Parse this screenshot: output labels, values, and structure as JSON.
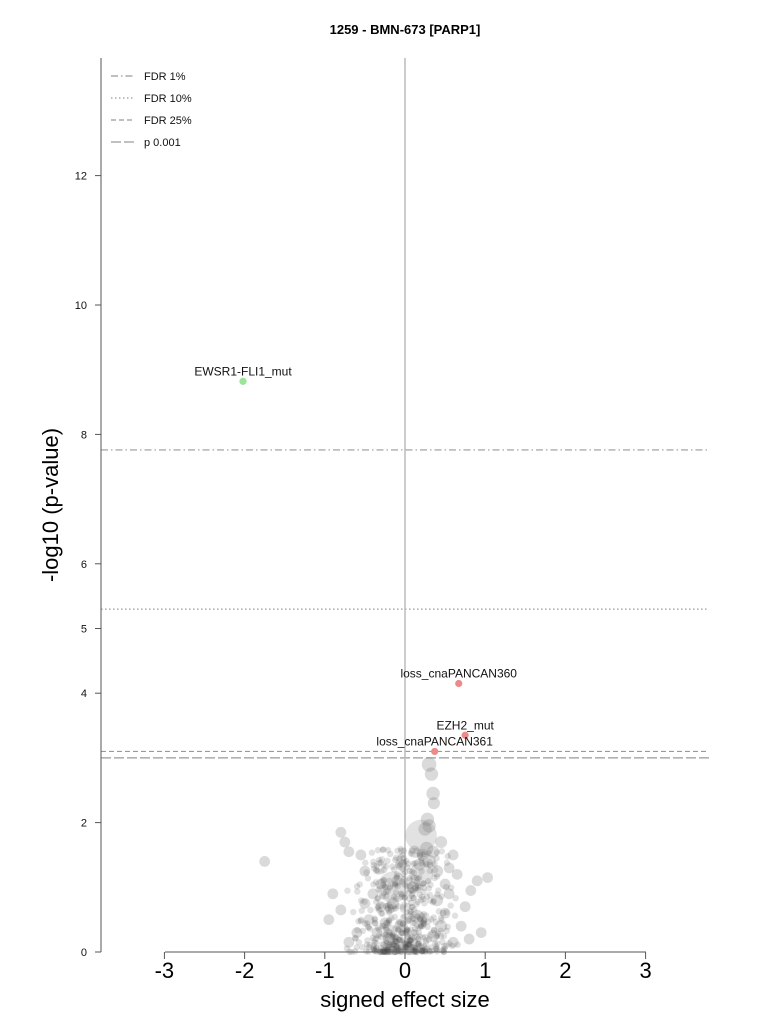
{
  "chart_data": {
    "type": "scatter",
    "title": "1259 - BMN-673 [PARP1]",
    "xlabel": "signed effect size",
    "ylabel": "-log10 (p-value)",
    "xlim": [
      -3.8,
      3.8
    ],
    "xaxis_range": [
      -3,
      3
    ],
    "x_ticks": [
      "-3",
      "-2",
      "-1",
      "0",
      "1",
      "2",
      "3"
    ],
    "y_ticks": [
      "0",
      "2",
      "4",
      "5",
      "6",
      "8",
      "10",
      "12"
    ],
    "ylim": [
      0,
      13.8
    ],
    "grid": false,
    "legend": {
      "position": "top-left",
      "entries": [
        {
          "label": "FDR 1%",
          "style": "dashdot"
        },
        {
          "label": "FDR 10%",
          "style": "dotted"
        },
        {
          "label": "FDR 25%",
          "style": "dashed"
        },
        {
          "label": "p 0.001",
          "style": "longdash"
        }
      ]
    },
    "thresholds": [
      {
        "name": "FDR 1%",
        "y": 7.76
      },
      {
        "name": "FDR 10%",
        "y": 5.3
      },
      {
        "name": "FDR 25%",
        "y": 3.1
      },
      {
        "name": "p 0.001",
        "y": 3.0
      }
    ],
    "highlighted_points": [
      {
        "label": "EWSR1-FLI1_mut",
        "x": -2.02,
        "y": 8.82,
        "color": "#99e699"
      },
      {
        "label": "loss_cnaPANCAN360",
        "x": 0.67,
        "y": 4.15,
        "color": "#ee8a8a"
      },
      {
        "label": "EZH2_mut",
        "x": 0.75,
        "y": 3.35,
        "color": "#ee8a8a"
      },
      {
        "label": "loss_cnaPANCAN361",
        "x": 0.37,
        "y": 3.1,
        "color": "#ee8a8a"
      }
    ],
    "background_points": [
      [
        -0.15,
        1.0,
        1.0
      ],
      [
        0.2,
        1.8,
        1.0
      ],
      [
        0.2,
        1.2,
        0.7
      ],
      [
        0.3,
        2.9,
        0.35
      ],
      [
        0.33,
        2.75,
        0.3
      ],
      [
        0.35,
        2.45,
        0.3
      ],
      [
        0.36,
        2.3,
        0.25
      ],
      [
        -1.75,
        1.4,
        0.2
      ],
      [
        -0.8,
        1.85,
        0.2
      ],
      [
        -0.75,
        1.7,
        0.2
      ],
      [
        -0.7,
        1.55,
        0.2
      ],
      [
        -0.5,
        1.25,
        0.2
      ],
      [
        -0.55,
        1.5,
        0.2
      ],
      [
        -0.9,
        0.9,
        0.2
      ],
      [
        -0.95,
        0.5,
        0.2
      ],
      [
        -0.6,
        0.3,
        0.2
      ],
      [
        0.9,
        1.1,
        0.2
      ],
      [
        1.03,
        1.15,
        0.2
      ],
      [
        0.82,
        0.95,
        0.2
      ],
      [
        0.75,
        0.7,
        0.2
      ],
      [
        0.6,
        1.5,
        0.2
      ],
      [
        0.55,
        1.3,
        0.2
      ],
      [
        0.55,
        0.9,
        0.2
      ],
      [
        0.5,
        0.6,
        0.2
      ],
      [
        0.7,
        0.4,
        0.2
      ],
      [
        0.8,
        0.2,
        0.2
      ],
      [
        0.65,
        1.2,
        0.2
      ],
      [
        -0.3,
        0.7,
        0.2
      ],
      [
        -0.4,
        0.9,
        0.2
      ],
      [
        -0.45,
        0.5,
        0.2
      ],
      [
        -0.35,
        0.3,
        0.2
      ],
      [
        -0.25,
        0.45,
        0.2
      ],
      [
        0.28,
        2.05,
        0.3
      ],
      [
        0.25,
        1.9,
        0.3
      ],
      [
        0.3,
        1.95,
        0.3
      ],
      [
        0.27,
        1.6,
        0.3
      ],
      [
        0.22,
        1.5,
        0.25
      ],
      [
        0.3,
        1.4,
        0.3
      ],
      [
        0.18,
        1.35,
        0.25
      ],
      [
        0.35,
        1.55,
        0.25
      ],
      [
        0.45,
        1.7,
        0.25
      ],
      [
        0.4,
        1.25,
        0.25
      ],
      [
        -0.05,
        1.35,
        0.25
      ],
      [
        -0.1,
        1.1,
        0.2
      ],
      [
        0.12,
        1.55,
        0.25
      ],
      [
        0.5,
        1.05,
        0.2
      ],
      [
        -0.7,
        0.15,
        0.2
      ],
      [
        0.95,
        0.3,
        0.2
      ],
      [
        -0.2,
        0.2,
        0.25
      ],
      [
        0.6,
        0.15,
        0.2
      ],
      [
        -0.05,
        0.4,
        0.3
      ],
      [
        0.15,
        0.55,
        0.3
      ],
      [
        -0.15,
        0.75,
        0.25
      ],
      [
        0.4,
        0.8,
        0.25
      ],
      [
        0.1,
        1.0,
        0.25
      ],
      [
        -0.3,
        1.05,
        0.2
      ],
      [
        0.45,
        0.4,
        0.25
      ],
      [
        -0.5,
        0.75,
        0.2
      ],
      [
        0.35,
        0.25,
        0.25
      ],
      [
        -0.8,
        0.65,
        0.2
      ]
    ]
  }
}
